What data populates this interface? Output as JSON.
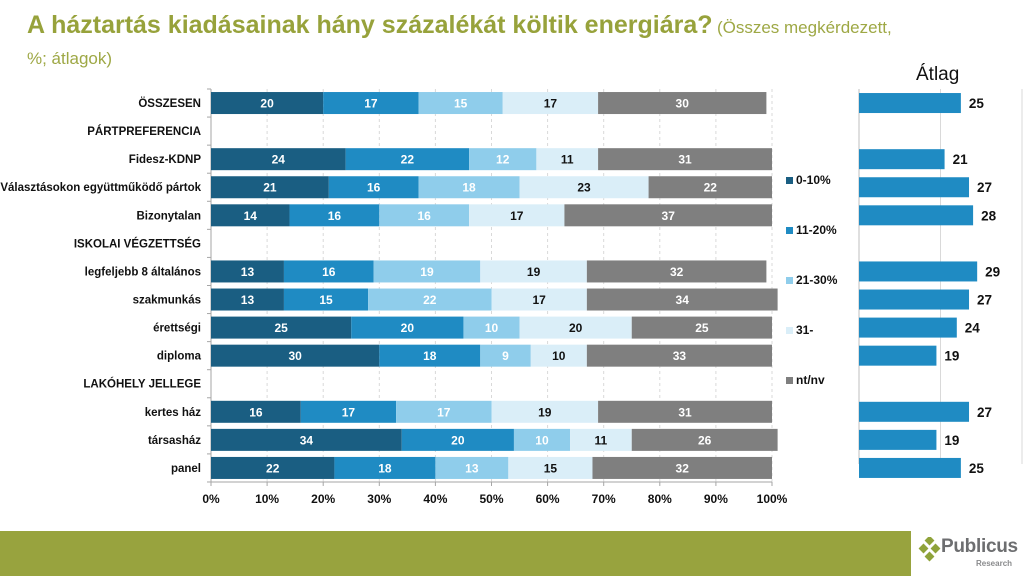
{
  "title": {
    "main": "A háztartás kiadásainak hány százalékát költik energiára?",
    "sub": "(Összes megkérdezett, %; átlagok)"
  },
  "colors": {
    "title": "#97a23b",
    "footer": "#98a33e",
    "series": [
      "#1a5e82",
      "#1f8bc3",
      "#8fcdeb",
      "#daeef8",
      "#7f7f7f"
    ],
    "series_label": [
      "#ffffff",
      "#ffffff",
      "#ffffff",
      "#111111",
      "#ffffff"
    ],
    "avg_bar": "#1f8bc3"
  },
  "logo": {
    "name": "Publicus",
    "sub": "Research"
  },
  "chart_data": [
    {
      "type": "bar",
      "orientation": "horizontal",
      "stacked": true,
      "title": "",
      "xlabel": "",
      "ylabel": "",
      "xlim": [
        0,
        100
      ],
      "x_ticks": [
        "0%",
        "10%",
        "20%",
        "30%",
        "40%",
        "50%",
        "60%",
        "70%",
        "80%",
        "90%",
        "100%"
      ],
      "grid": "vertical-dashed",
      "legend_position": "right",
      "categories": [
        {
          "label": "ÖSSZESEN",
          "header": false
        },
        {
          "label": "PÁRTPREFERENCIA",
          "header": true
        },
        {
          "label": "Fidesz-KDNP",
          "header": false
        },
        {
          "label": "Választásokon együttműködő pártok",
          "header": false
        },
        {
          "label": "Bizonytalan",
          "header": false
        },
        {
          "label": "ISKOLAI VÉGZETTSÉG",
          "header": true
        },
        {
          "label": "legfeljebb 8 általános",
          "header": false
        },
        {
          "label": "szakmunkás",
          "header": false
        },
        {
          "label": "érettségi",
          "header": false
        },
        {
          "label": "diploma",
          "header": false
        },
        {
          "label": "LAKÓHELY JELLEGE",
          "header": true
        },
        {
          "label": "kertes ház",
          "header": false
        },
        {
          "label": "társasház",
          "header": false
        },
        {
          "label": "panel",
          "header": false
        }
      ],
      "series": [
        {
          "name": "0-10%",
          "values": [
            20,
            null,
            24,
            21,
            14,
            null,
            13,
            13,
            25,
            30,
            null,
            16,
            34,
            22
          ]
        },
        {
          "name": "11-20%",
          "values": [
            17,
            null,
            22,
            16,
            16,
            null,
            16,
            15,
            20,
            18,
            null,
            17,
            20,
            18
          ]
        },
        {
          "name": "21-30%",
          "values": [
            15,
            null,
            12,
            18,
            16,
            null,
            19,
            22,
            10,
            9,
            null,
            17,
            10,
            13
          ]
        },
        {
          "name": "31-",
          "values": [
            17,
            null,
            11,
            23,
            17,
            null,
            19,
            17,
            20,
            10,
            null,
            19,
            11,
            15
          ]
        },
        {
          "name": "nt/nv",
          "values": [
            30,
            null,
            31,
            22,
            37,
            null,
            32,
            34,
            25,
            33,
            null,
            31,
            26,
            32
          ]
        }
      ]
    },
    {
      "type": "bar",
      "orientation": "horizontal",
      "title": "Átlag",
      "xlim": [
        0,
        40
      ],
      "grid": "vertical",
      "values": [
        25,
        null,
        21,
        27,
        28,
        null,
        29,
        27,
        24,
        19,
        null,
        27,
        19,
        25
      ]
    }
  ]
}
